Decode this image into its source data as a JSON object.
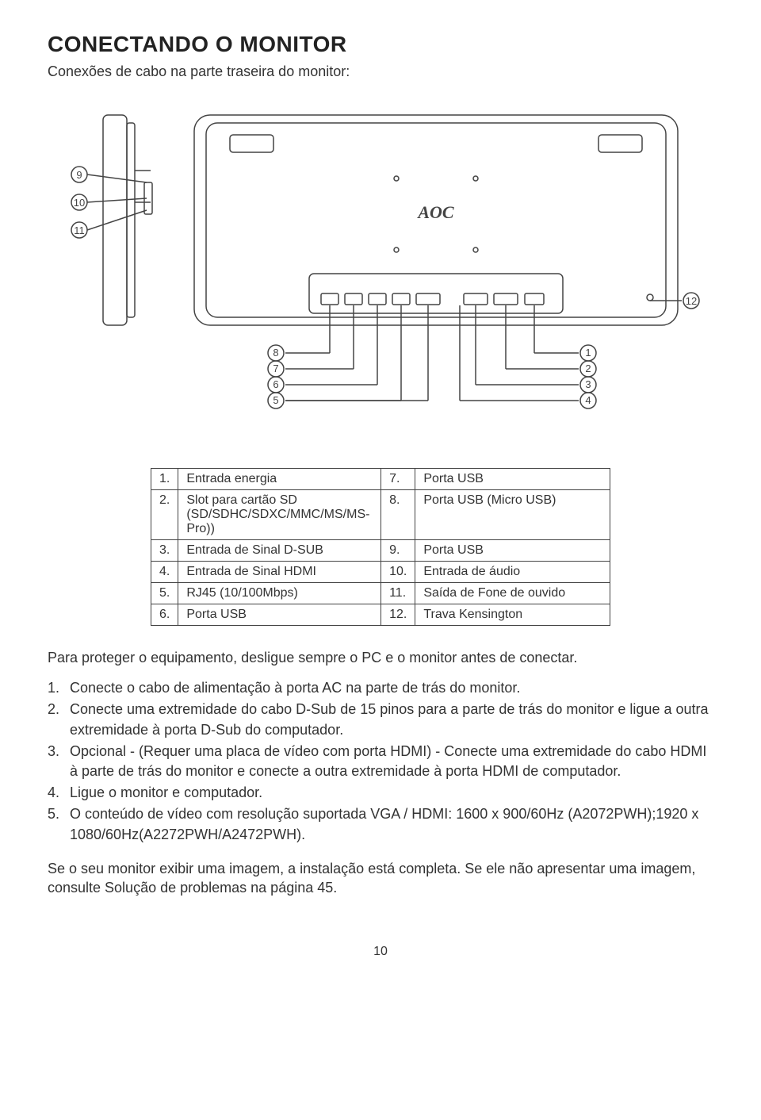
{
  "title": "CONECTANDO O MONITOR",
  "subhead": "Conexões de cabo na parte traseira do monitor:",
  "diagram": {
    "logo_text": "AOC",
    "callouts_left": [
      "9",
      "10",
      "11"
    ],
    "callouts_right": [
      "12"
    ],
    "callouts_bottom_left": [
      "8",
      "7",
      "6",
      "5"
    ],
    "callouts_bottom_right": [
      "1",
      "2",
      "3",
      "4"
    ],
    "stroke": "#444444",
    "bg": "#ffffff"
  },
  "table": {
    "rows": [
      {
        "n1": "1.",
        "l1": "Entrada energia",
        "n2": "7.",
        "l2": "Porta USB"
      },
      {
        "n1": "2.",
        "l1": "Slot para cartão SD (SD/SDHC/SDXC/MMC/MS/MS-Pro))",
        "n2": "8.",
        "l2": "Porta USB (Micro USB)"
      },
      {
        "n1": "3.",
        "l1": "Entrada de Sinal D-SUB",
        "n2": "9.",
        "l2": "Porta USB"
      },
      {
        "n1": "4.",
        "l1": "Entrada de Sinal HDMI",
        "n2": "10.",
        "l2": "Entrada de áudio"
      },
      {
        "n1": "5.",
        "l1": "RJ45 (10/100Mbps)",
        "n2": "11.",
        "l2": "Saída de Fone de ouvido"
      },
      {
        "n1": "6.",
        "l1": "Porta USB",
        "n2": "12.",
        "l2": "Trava Kensington"
      }
    ]
  },
  "para_before": "Para proteger o equipamento, desligue sempre o PC e o monitor antes de conectar.",
  "steps": [
    "Conecte o cabo de alimentação à porta AC na parte de trás do monitor.",
    "Conecte uma extremidade do cabo D-Sub de 15 pinos para a parte de trás do monitor e ligue a outra extremidade à porta D-Sub do computador.",
    "Opcional - (Requer uma placa de vídeo com porta HDMI) - Conecte uma extremidade do cabo HDMI à parte de trás do monitor e conecte a outra extremidade à porta HDMI de computador.",
    "Ligue o monitor e computador.",
    "O conteúdo de vídeo com resolução suportada VGA / HDMI: 1600 x 900/60Hz (A2072PWH);1920 x 1080/60Hz(A2272PWH/A2472PWH)."
  ],
  "para_after": "Se o seu monitor exibir uma imagem, a instalação está completa. Se ele não apresentar uma imagem, consulte Solução de problemas na página 45.",
  "page_number": "10"
}
